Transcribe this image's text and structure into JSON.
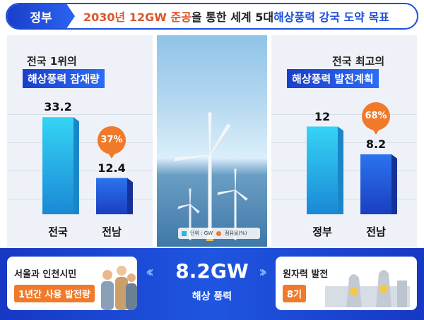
{
  "header": {
    "badge": "정부",
    "title_part1": "2030년 12GW 준공",
    "title_part2": "을 통한 세계 5대 ",
    "title_part3": "해상풍력 강국 도약 목표"
  },
  "left_panel": {
    "kicker": "전국 1위의",
    "tag": "해상풍력 잠재량"
  },
  "right_panel": {
    "kicker": "전국 최고의",
    "tag": "해상풍력 발전계획"
  },
  "legend": {
    "unit_label": "단위 : GW",
    "share_label": "점유율(%)"
  },
  "colors": {
    "primary_blue": "#1f4fd8",
    "bar_cyan": "#22b8e8",
    "bar_blue": "#1e5fe0",
    "orange": "#f07a2a"
  },
  "chart_data": [
    {
      "type": "bar",
      "title": "해상풍력 잠재량",
      "categories": [
        "전국",
        "전남"
      ],
      "values": [
        33.2,
        12.4
      ],
      "value_labels": [
        "33.2",
        "12.4"
      ],
      "share": [
        null,
        "37%"
      ],
      "unit": "GW",
      "ylim": [
        0,
        40
      ],
      "grid": true
    },
    {
      "type": "bar",
      "title": "해상풍력 발전계획",
      "categories": [
        "정부",
        "전남"
      ],
      "values": [
        12,
        8.2
      ],
      "value_labels": [
        "12",
        "8.2"
      ],
      "share": [
        null,
        "68%"
      ],
      "unit": "GW",
      "ylim": [
        0,
        16
      ],
      "grid": true
    }
  ],
  "bottom": {
    "left_line1": "서울과 인천시민",
    "left_tag": "1년간 사용 발전량",
    "center_value": "8.2GW",
    "center_label": "해상 풍력",
    "right_line1": "원자력 발전",
    "right_tag": "8기"
  }
}
